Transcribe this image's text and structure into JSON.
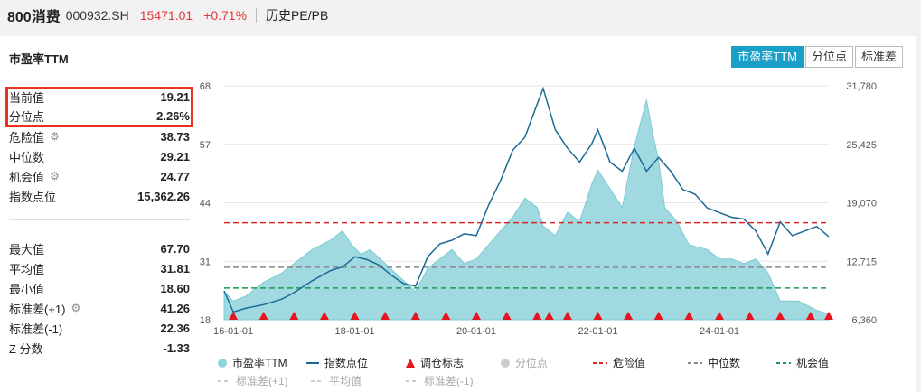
{
  "header": {
    "name": "800消费",
    "code": "000932.SH",
    "price": "15471.01",
    "change": "+0.71%",
    "subtitle": "历史PE/PB"
  },
  "card": {
    "title": "市盈率TTM",
    "tabs": [
      "市盈率TTM",
      "分位点",
      "标准差"
    ],
    "active_tab": "市盈率TTM"
  },
  "stats": {
    "current_label": "当前值",
    "current_value": "19.21",
    "percentile_label": "分位点",
    "percentile_value": "2.26%",
    "danger_label": "危险值",
    "danger_value": "38.73",
    "median_label": "中位数",
    "median_value": "29.21",
    "chance_label": "机会值",
    "chance_value": "24.77",
    "index_label": "指数点位",
    "index_value": "15,362.26",
    "max_label": "最大值",
    "max_value": "67.70",
    "mean_label": "平均值",
    "mean_value": "31.81",
    "min_label": "最小值",
    "min_value": "18.60",
    "sd_plus_label": "标准差(+1)",
    "sd_plus_value": "41.26",
    "sd_minus_label": "标准差(-1)",
    "sd_minus_value": "22.36",
    "z_label": "Z 分数",
    "z_value": "-1.33"
  },
  "legend": {
    "pe": "市盈率TTM",
    "index": "指数点位",
    "rebalance": "调仓标志",
    "percentile": "分位点",
    "danger": "危险值",
    "median": "中位数",
    "chance": "机会值",
    "sd_plus": "标准差(+1)",
    "mean": "平均值",
    "sd_minus": "标准差(-1)"
  },
  "colors": {
    "accent": "#1aa0c8",
    "pe_fill": "#8fd3db",
    "index_line": "#1b6a94",
    "danger": "#d62728",
    "median": "#888888",
    "chance": "#1a9a50",
    "marker": "#e8141e",
    "highlight_box": "#e8321e"
  },
  "chart_data": {
    "type": "area",
    "left_axis": {
      "ticks": [
        "68",
        "57",
        "44",
        "31",
        "18"
      ],
      "range": [
        18,
        68
      ]
    },
    "right_axis": {
      "ticks": [
        "31,780",
        "25,425",
        "19,070",
        "12,715",
        "6,360"
      ],
      "range": [
        6360,
        31780
      ]
    },
    "x_ticks": [
      "16-01-01",
      "18-01-01",
      "20-01-01",
      "22-01-01",
      "24-01-01"
    ],
    "x_range": [
      2015.85,
      2025.8
    ],
    "reference_lines": {
      "danger": 38.73,
      "median": 29.21,
      "chance": 24.77
    },
    "pe_series": {
      "name": "市盈率TTM",
      "x": [
        2015.85,
        2016.0,
        2016.2,
        2016.5,
        2016.8,
        2017.0,
        2017.3,
        2017.6,
        2017.8,
        2017.95,
        2018.1,
        2018.25,
        2018.5,
        2018.75,
        2019.0,
        2019.2,
        2019.4,
        2019.6,
        2019.8,
        2020.0,
        2020.2,
        2020.4,
        2020.6,
        2020.8,
        2021.0,
        2021.1,
        2021.3,
        2021.5,
        2021.7,
        2021.9,
        2022.0,
        2022.2,
        2022.4,
        2022.6,
        2022.8,
        2022.9,
        2023.0,
        2023.1,
        2023.3,
        2023.5,
        2023.8,
        2024.0,
        2024.2,
        2024.4,
        2024.6,
        2024.8,
        2025.0,
        2025.3,
        2025.6,
        2025.8
      ],
      "y": [
        24,
        22,
        23,
        26,
        28,
        30,
        33,
        35,
        37,
        34,
        32,
        33,
        30,
        27,
        24,
        29,
        31,
        33,
        30,
        31,
        34,
        37,
        40,
        44,
        42,
        38,
        36,
        41,
        39,
        47,
        50,
        46,
        42,
        55,
        65,
        58,
        52,
        42,
        39,
        34,
        33,
        31,
        31,
        30,
        31,
        28,
        22,
        22,
        20,
        19.2
      ]
    },
    "index_series": {
      "name": "指数点位",
      "x": [
        2015.85,
        2016.0,
        2016.2,
        2016.5,
        2016.8,
        2017.0,
        2017.3,
        2017.6,
        2017.8,
        2018.0,
        2018.2,
        2018.4,
        2018.6,
        2018.8,
        2019.0,
        2019.2,
        2019.4,
        2019.6,
        2019.8,
        2020.0,
        2020.2,
        2020.4,
        2020.6,
        2020.8,
        2021.0,
        2021.1,
        2021.3,
        2021.5,
        2021.7,
        2021.9,
        2022.0,
        2022.2,
        2022.4,
        2022.6,
        2022.8,
        2023.0,
        2023.2,
        2023.4,
        2023.6,
        2023.8,
        2024.0,
        2024.2,
        2024.4,
        2024.6,
        2024.8,
        2025.0,
        2025.2,
        2025.4,
        2025.6,
        2025.8
      ],
      "y": [
        9500,
        7200,
        7600,
        8000,
        8600,
        9300,
        10600,
        11700,
        12100,
        13200,
        12900,
        12300,
        11200,
        10300,
        10000,
        13200,
        14600,
        15000,
        15700,
        15500,
        18800,
        21500,
        24800,
        26200,
        29800,
        31500,
        27000,
        25000,
        23500,
        25500,
        27000,
        23500,
        22500,
        25000,
        22500,
        24000,
        22500,
        20500,
        20000,
        18500,
        18000,
        17500,
        17300,
        16000,
        13500,
        17000,
        15500,
        16000,
        16500,
        15400
      ]
    },
    "rebalance_markers": {
      "name": "调仓标志",
      "x": [
        2016.0,
        2016.5,
        2017.0,
        2017.5,
        2018.0,
        2018.5,
        2019.0,
        2019.5,
        2020.0,
        2020.5,
        2021.0,
        2021.2,
        2021.5,
        2022.0,
        2022.5,
        2023.0,
        2023.5,
        2024.0,
        2024.5,
        2025.0,
        2025.5,
        2025.8
      ]
    }
  }
}
